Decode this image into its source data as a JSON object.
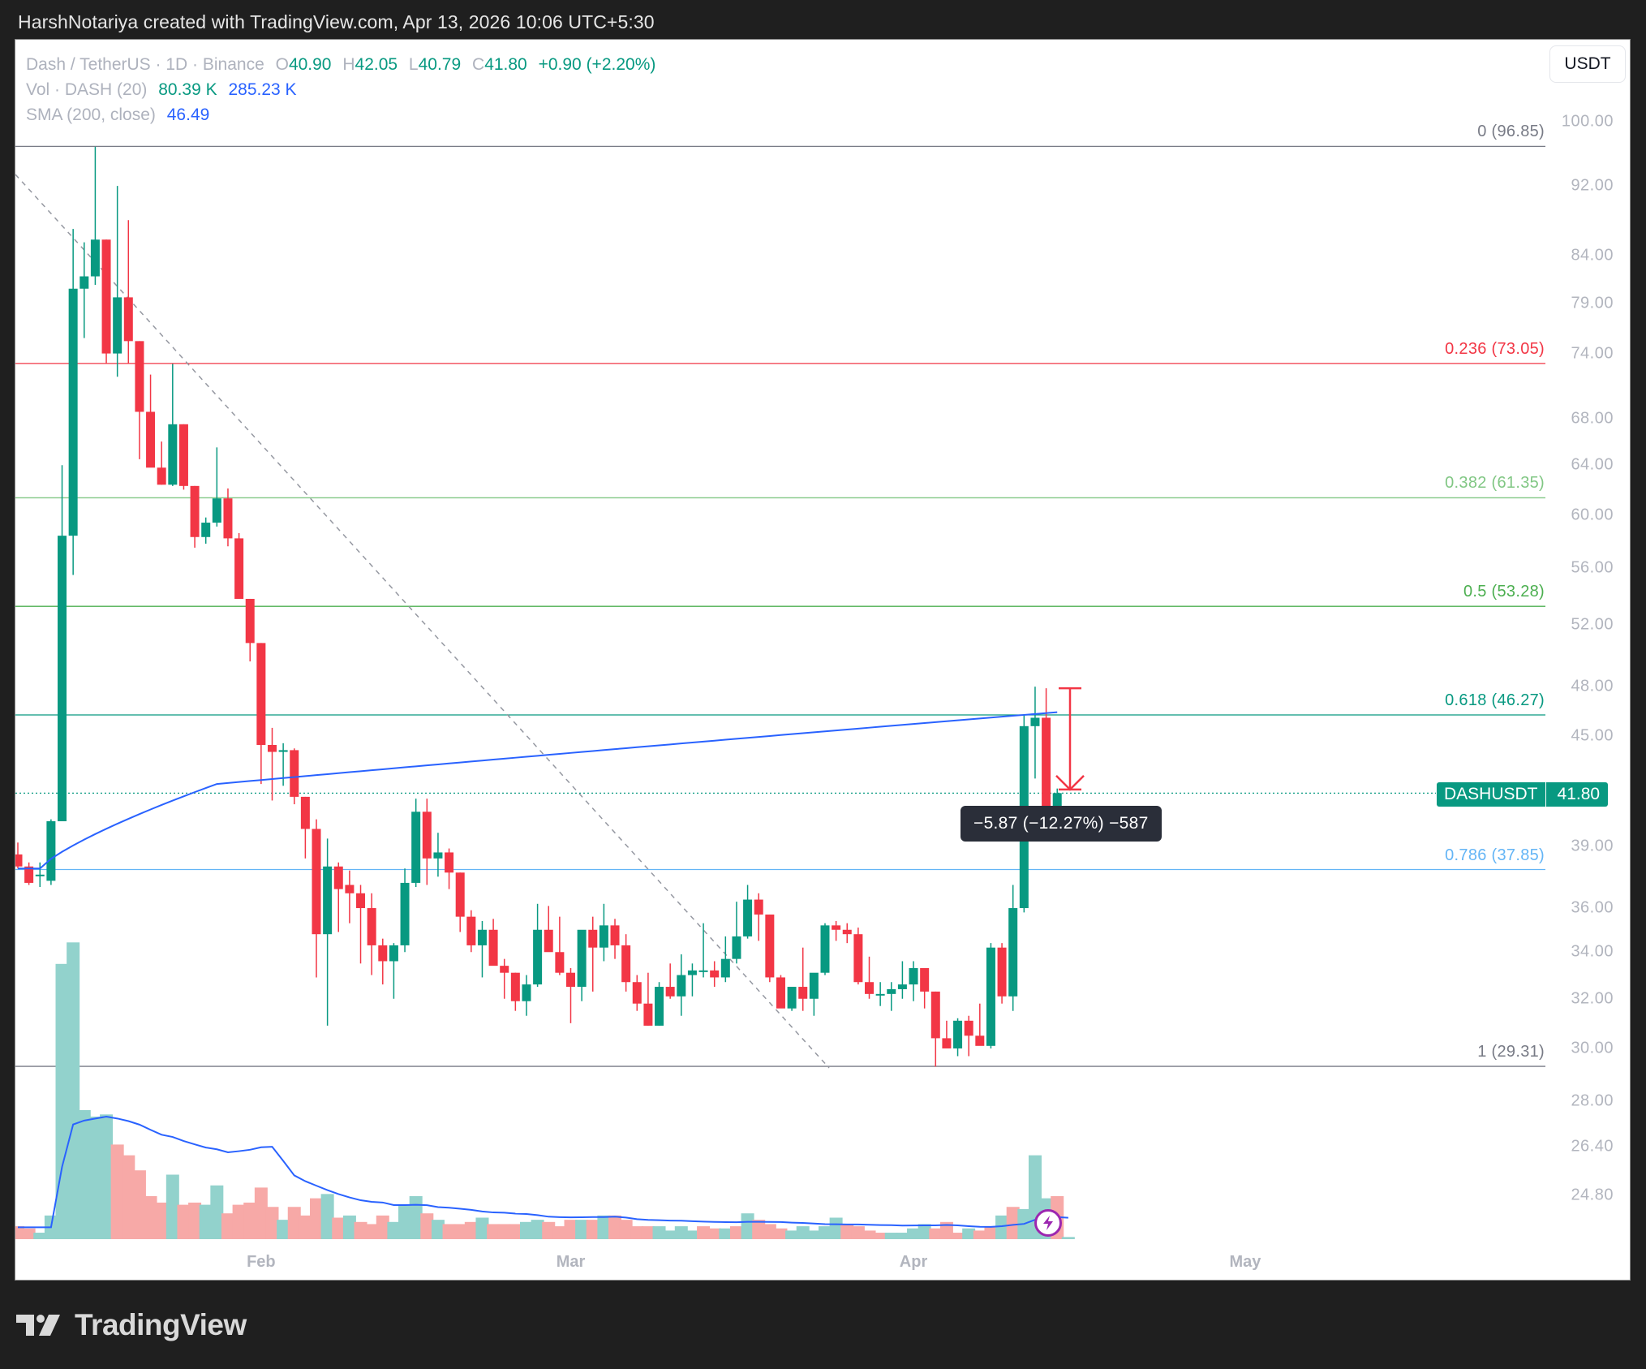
{
  "credit": "HarshNotariya created with TradingView.com, Apr 13, 2026 10:06 UTC+5:30",
  "legend": {
    "symbol": "Dash / TetherUS · 1D · Binance",
    "o_label": "O",
    "o": "40.90",
    "h_label": "H",
    "h": "42.05",
    "l_label": "L",
    "l": "40.79",
    "c_label": "C",
    "c": "41.80",
    "change": "+0.90 (+2.20%)",
    "vol_label": "Vol · DASH (20)",
    "vol": "80.39 K",
    "vol_ma": "285.23 K",
    "sma_label": "SMA (200, close)",
    "sma": "46.49"
  },
  "currency_button": "USDT",
  "price_tag": {
    "symbol": "DASHUSDT",
    "value": "41.80"
  },
  "measure_tooltip": "−5.87 (−12.27%) −587",
  "logo_text": "TradingView",
  "colors": {
    "up": "#089981",
    "down": "#f23645",
    "vol_up": "#92d2cc",
    "vol_down": "#f7a9a7",
    "sma": "#2962ff",
    "fib_0": "#787b86",
    "fib_236": "#f23645",
    "fib_382": "#81c784",
    "fib_5": "#4caf50",
    "fib_618": "#089981",
    "fib_786": "#64b5f6",
    "fib_1": "#787b86"
  },
  "chart_data": {
    "type": "candlestick",
    "title": "Dash / TetherUS · 1D · Binance",
    "xlabel": "",
    "ylabel": "USDT",
    "scale": "log",
    "ylim": [
      23.5,
      104
    ],
    "y_ticks": [
      "100.00",
      "92.00",
      "84.00",
      "79.00",
      "74.00",
      "68.00",
      "64.00",
      "60.00",
      "56.00",
      "52.00",
      "48.00",
      "45.00",
      "39.00",
      "36.00",
      "34.00",
      "32.00",
      "30.00",
      "28.00",
      "26.40",
      "24.80"
    ],
    "x_ticks": [
      {
        "label": "Feb",
        "day": 22
      },
      {
        "label": "Mar",
        "day": 50
      },
      {
        "label": "Apr",
        "day": 81
      },
      {
        "label": "May",
        "day": 111
      }
    ],
    "fib_levels": [
      {
        "label": "0 (96.85)",
        "level": 0,
        "price": 96.85,
        "color": "#787b86"
      },
      {
        "label": "0.236 (73.05)",
        "level": 0.236,
        "price": 73.05,
        "color": "#f23645"
      },
      {
        "label": "0.382 (61.35)",
        "level": 0.382,
        "price": 61.35,
        "color": "#81c784"
      },
      {
        "label": "0.5 (53.28)",
        "level": 0.5,
        "price": 53.28,
        "color": "#4caf50"
      },
      {
        "label": "0.618 (46.27)",
        "level": 0.618,
        "price": 46.27,
        "color": "#089981"
      },
      {
        "label": "0.786 (37.85)",
        "level": 0.786,
        "price": 37.85,
        "color": "#64b5f6"
      },
      {
        "label": "1 (29.31)",
        "level": 1,
        "price": 29.31,
        "color": "#787b86"
      }
    ],
    "last_price": 41.8,
    "sma200_last": 46.49,
    "candles": [
      {
        "o": 38.6,
        "h": 39.2,
        "l": 37.9,
        "c": 38.0
      },
      {
        "o": 38.0,
        "h": 38.2,
        "l": 37.1,
        "c": 37.2
      },
      {
        "o": 37.6,
        "h": 38.2,
        "l": 37.0,
        "c": 37.6
      },
      {
        "o": 37.3,
        "h": 40.4,
        "l": 37.1,
        "c": 40.3
      },
      {
        "o": 40.3,
        "h": 64.0,
        "l": 40.3,
        "c": 58.4
      },
      {
        "o": 58.4,
        "h": 87.0,
        "l": 55.5,
        "c": 80.5
      },
      {
        "o": 80.5,
        "h": 85.5,
        "l": 75.5,
        "c": 81.8
      },
      {
        "o": 81.8,
        "h": 96.8,
        "l": 80.9,
        "c": 85.8
      },
      {
        "o": 85.8,
        "h": 85.8,
        "l": 73.0,
        "c": 74.0
      },
      {
        "o": 74.0,
        "h": 92.0,
        "l": 71.8,
        "c": 79.6
      },
      {
        "o": 79.6,
        "h": 88.0,
        "l": 73.0,
        "c": 75.2
      },
      {
        "o": 75.2,
        "h": 75.2,
        "l": 64.5,
        "c": 68.6
      },
      {
        "o": 68.6,
        "h": 72.0,
        "l": 66.0,
        "c": 63.8
      },
      {
        "o": 63.8,
        "h": 66.0,
        "l": 62.4,
        "c": 62.4
      },
      {
        "o": 62.4,
        "h": 73.0,
        "l": 62.3,
        "c": 67.5
      },
      {
        "o": 67.5,
        "h": 67.5,
        "l": 62.0,
        "c": 62.3
      },
      {
        "o": 62.3,
        "h": 62.3,
        "l": 57.5,
        "c": 58.3
      },
      {
        "o": 58.3,
        "h": 59.8,
        "l": 57.8,
        "c": 59.4
      },
      {
        "o": 59.4,
        "h": 65.5,
        "l": 59.1,
        "c": 61.3
      },
      {
        "o": 61.3,
        "h": 62.1,
        "l": 57.6,
        "c": 58.2
      },
      {
        "o": 58.2,
        "h": 58.6,
        "l": 53.9,
        "c": 53.8
      },
      {
        "o": 53.8,
        "h": 53.8,
        "l": 49.6,
        "c": 50.8
      },
      {
        "o": 50.8,
        "h": 50.8,
        "l": 42.3,
        "c": 44.5
      },
      {
        "o": 44.5,
        "h": 45.5,
        "l": 41.4,
        "c": 44.1
      },
      {
        "o": 44.1,
        "h": 44.6,
        "l": 42.2,
        "c": 44.2
      },
      {
        "o": 44.2,
        "h": 44.3,
        "l": 41.2,
        "c": 41.6
      },
      {
        "o": 41.6,
        "h": 41.6,
        "l": 38.4,
        "c": 39.9
      },
      {
        "o": 39.9,
        "h": 40.4,
        "l": 32.9,
        "c": 34.8
      },
      {
        "o": 34.8,
        "h": 39.4,
        "l": 30.9,
        "c": 38.0
      },
      {
        "o": 38.0,
        "h": 38.2,
        "l": 34.9,
        "c": 36.9
      },
      {
        "o": 37.1,
        "h": 37.8,
        "l": 35.3,
        "c": 36.7
      },
      {
        "o": 36.7,
        "h": 37.1,
        "l": 33.5,
        "c": 36.0
      },
      {
        "o": 36.0,
        "h": 36.7,
        "l": 33.0,
        "c": 34.3
      },
      {
        "o": 34.3,
        "h": 34.6,
        "l": 32.6,
        "c": 33.6
      },
      {
        "o": 33.6,
        "h": 34.4,
        "l": 32.0,
        "c": 34.3
      },
      {
        "o": 34.3,
        "h": 37.9,
        "l": 34.0,
        "c": 37.2
      },
      {
        "o": 37.2,
        "h": 41.5,
        "l": 37.0,
        "c": 40.8
      },
      {
        "o": 40.8,
        "h": 41.5,
        "l": 37.1,
        "c": 38.4
      },
      {
        "o": 38.4,
        "h": 39.7,
        "l": 37.5,
        "c": 38.7
      },
      {
        "o": 38.7,
        "h": 38.9,
        "l": 36.9,
        "c": 37.7
      },
      {
        "o": 37.7,
        "h": 37.7,
        "l": 34.9,
        "c": 35.6
      },
      {
        "o": 35.6,
        "h": 35.9,
        "l": 34.0,
        "c": 34.3
      },
      {
        "o": 34.3,
        "h": 35.4,
        "l": 32.9,
        "c": 35.0
      },
      {
        "o": 35.0,
        "h": 35.5,
        "l": 33.6,
        "c": 33.4
      },
      {
        "o": 33.4,
        "h": 33.7,
        "l": 32.0,
        "c": 33.1
      },
      {
        "o": 33.1,
        "h": 33.1,
        "l": 31.5,
        "c": 31.9
      },
      {
        "o": 31.9,
        "h": 33.0,
        "l": 31.3,
        "c": 32.6
      },
      {
        "o": 32.6,
        "h": 36.2,
        "l": 32.5,
        "c": 35.0
      },
      {
        "o": 35.0,
        "h": 36.1,
        "l": 34.3,
        "c": 34.0
      },
      {
        "o": 34.0,
        "h": 35.6,
        "l": 33.0,
        "c": 33.1
      },
      {
        "o": 33.1,
        "h": 33.3,
        "l": 31.0,
        "c": 32.5
      },
      {
        "o": 32.5,
        "h": 34.0,
        "l": 31.9,
        "c": 35.0
      },
      {
        "o": 35.0,
        "h": 35.6,
        "l": 32.3,
        "c": 34.2
      },
      {
        "o": 34.2,
        "h": 36.2,
        "l": 33.6,
        "c": 35.2
      },
      {
        "o": 35.2,
        "h": 35.5,
        "l": 33.7,
        "c": 34.3
      },
      {
        "o": 34.3,
        "h": 34.8,
        "l": 32.3,
        "c": 32.7
      },
      {
        "o": 32.7,
        "h": 33.0,
        "l": 31.5,
        "c": 31.8
      },
      {
        "o": 31.8,
        "h": 33.1,
        "l": 30.9,
        "c": 30.9
      },
      {
        "o": 30.9,
        "h": 32.7,
        "l": 30.9,
        "c": 32.5
      },
      {
        "o": 32.5,
        "h": 33.5,
        "l": 32.0,
        "c": 32.1
      },
      {
        "o": 32.1,
        "h": 33.9,
        "l": 31.3,
        "c": 33.0
      },
      {
        "o": 33.0,
        "h": 33.5,
        "l": 32.1,
        "c": 33.2
      },
      {
        "o": 33.2,
        "h": 35.3,
        "l": 32.9,
        "c": 33.2
      },
      {
        "o": 33.2,
        "h": 33.6,
        "l": 32.5,
        "c": 32.9
      },
      {
        "o": 32.9,
        "h": 34.7,
        "l": 32.7,
        "c": 33.7
      },
      {
        "o": 33.7,
        "h": 36.3,
        "l": 33.5,
        "c": 34.7
      },
      {
        "o": 34.7,
        "h": 37.1,
        "l": 34.6,
        "c": 36.4
      },
      {
        "o": 36.4,
        "h": 36.7,
        "l": 34.5,
        "c": 35.7
      },
      {
        "o": 35.7,
        "h": 35.7,
        "l": 32.7,
        "c": 32.9
      },
      {
        "o": 32.9,
        "h": 33.0,
        "l": 31.7,
        "c": 31.6
      },
      {
        "o": 31.6,
        "h": 32.3,
        "l": 31.5,
        "c": 32.5
      },
      {
        "o": 32.5,
        "h": 34.2,
        "l": 31.5,
        "c": 32.0
      },
      {
        "o": 32.0,
        "h": 33.0,
        "l": 31.3,
        "c": 33.1
      },
      {
        "o": 33.1,
        "h": 35.3,
        "l": 33.0,
        "c": 35.2
      },
      {
        "o": 35.2,
        "h": 35.4,
        "l": 34.5,
        "c": 35.0
      },
      {
        "o": 35.0,
        "h": 35.3,
        "l": 34.4,
        "c": 34.8
      },
      {
        "o": 34.8,
        "h": 35.1,
        "l": 32.6,
        "c": 32.7
      },
      {
        "o": 32.7,
        "h": 33.8,
        "l": 32.0,
        "c": 32.2
      },
      {
        "o": 32.2,
        "h": 32.7,
        "l": 31.7,
        "c": 32.2
      },
      {
        "o": 32.2,
        "h": 32.7,
        "l": 31.5,
        "c": 32.4
      },
      {
        "o": 32.4,
        "h": 33.6,
        "l": 32.0,
        "c": 32.6
      },
      {
        "o": 32.6,
        "h": 33.6,
        "l": 31.9,
        "c": 33.3
      },
      {
        "o": 33.3,
        "h": 33.0,
        "l": 31.6,
        "c": 32.3
      },
      {
        "o": 32.3,
        "h": 32.3,
        "l": 29.3,
        "c": 30.4
      },
      {
        "o": 30.4,
        "h": 31.1,
        "l": 30.3,
        "c": 30.0
      },
      {
        "o": 30.0,
        "h": 31.2,
        "l": 29.7,
        "c": 31.1
      },
      {
        "o": 31.1,
        "h": 31.3,
        "l": 29.7,
        "c": 30.5
      },
      {
        "o": 30.5,
        "h": 31.8,
        "l": 30.2,
        "c": 30.1
      },
      {
        "o": 30.1,
        "h": 34.4,
        "l": 30.0,
        "c": 34.2
      },
      {
        "o": 34.2,
        "h": 34.4,
        "l": 31.8,
        "c": 32.1
      },
      {
        "o": 32.1,
        "h": 37.1,
        "l": 31.5,
        "c": 36.0
      },
      {
        "o": 36.0,
        "h": 46.3,
        "l": 35.8,
        "c": 45.6
      },
      {
        "o": 45.6,
        "h": 48.0,
        "l": 42.6,
        "c": 46.1
      },
      {
        "o": 46.1,
        "h": 47.9,
        "l": 40.7,
        "c": 40.9
      },
      {
        "o": 40.9,
        "h": 42.05,
        "l": 40.79,
        "c": 41.8
      }
    ],
    "volume": [
      {
        "v": 6,
        "up": false
      },
      {
        "v": 5,
        "up": false
      },
      {
        "v": 3,
        "up": true
      },
      {
        "v": 11,
        "up": true
      },
      {
        "v": 128,
        "up": true
      },
      {
        "v": 138,
        "up": true
      },
      {
        "v": 60,
        "up": true
      },
      {
        "v": 57,
        "up": true
      },
      {
        "v": 58,
        "up": true
      },
      {
        "v": 44,
        "up": false
      },
      {
        "v": 39,
        "up": false
      },
      {
        "v": 32,
        "up": false
      },
      {
        "v": 20,
        "up": false
      },
      {
        "v": 17,
        "up": false
      },
      {
        "v": 30,
        "up": true
      },
      {
        "v": 16,
        "up": false
      },
      {
        "v": 17,
        "up": false
      },
      {
        "v": 16,
        "up": true
      },
      {
        "v": 25,
        "up": true
      },
      {
        "v": 12,
        "up": false
      },
      {
        "v": 16,
        "up": false
      },
      {
        "v": 17,
        "up": false
      },
      {
        "v": 24,
        "up": false
      },
      {
        "v": 15,
        "up": false
      },
      {
        "v": 9,
        "up": true
      },
      {
        "v": 15,
        "up": false
      },
      {
        "v": 11,
        "up": false
      },
      {
        "v": 19,
        "up": false
      },
      {
        "v": 21,
        "up": true
      },
      {
        "v": 10,
        "up": false
      },
      {
        "v": 11,
        "up": true
      },
      {
        "v": 8,
        "up": false
      },
      {
        "v": 7,
        "up": false
      },
      {
        "v": 11,
        "up": false
      },
      {
        "v": 8,
        "up": true
      },
      {
        "v": 16,
        "up": true
      },
      {
        "v": 20,
        "up": true
      },
      {
        "v": 12,
        "up": false
      },
      {
        "v": 9,
        "up": true
      },
      {
        "v": 7,
        "up": false
      },
      {
        "v": 7,
        "up": false
      },
      {
        "v": 8,
        "up": false
      },
      {
        "v": 10,
        "up": true
      },
      {
        "v": 7,
        "up": false
      },
      {
        "v": 7,
        "up": false
      },
      {
        "v": 7,
        "up": false
      },
      {
        "v": 8,
        "up": true
      },
      {
        "v": 9,
        "up": true
      },
      {
        "v": 8,
        "up": false
      },
      {
        "v": 6,
        "up": false
      },
      {
        "v": 9,
        "up": false
      },
      {
        "v": 9,
        "up": true
      },
      {
        "v": 9,
        "up": false
      },
      {
        "v": 11,
        "up": true
      },
      {
        "v": 11,
        "up": false
      },
      {
        "v": 9,
        "up": false
      },
      {
        "v": 6,
        "up": false
      },
      {
        "v": 6,
        "up": false
      },
      {
        "v": 6,
        "up": true
      },
      {
        "v": 4,
        "up": true
      },
      {
        "v": 6,
        "up": true
      },
      {
        "v": 4,
        "up": true
      },
      {
        "v": 6,
        "up": false
      },
      {
        "v": 5,
        "up": false
      },
      {
        "v": 5,
        "up": true
      },
      {
        "v": 6,
        "up": false
      },
      {
        "v": 12,
        "up": true
      },
      {
        "v": 9,
        "up": false
      },
      {
        "v": 7,
        "up": false
      },
      {
        "v": 5,
        "up": false
      },
      {
        "v": 4,
        "up": true
      },
      {
        "v": 6,
        "up": true
      },
      {
        "v": 4,
        "up": true
      },
      {
        "v": 6,
        "up": true
      },
      {
        "v": 10,
        "up": true
      },
      {
        "v": 7,
        "up": false
      },
      {
        "v": 6,
        "up": false
      },
      {
        "v": 4,
        "up": false
      },
      {
        "v": 3,
        "up": false
      },
      {
        "v": 3,
        "up": true
      },
      {
        "v": 3,
        "up": true
      },
      {
        "v": 5,
        "up": true
      },
      {
        "v": 7,
        "up": true
      },
      {
        "v": 5,
        "up": false
      },
      {
        "v": 8,
        "up": false
      },
      {
        "v": 3,
        "up": false
      },
      {
        "v": 5,
        "up": true
      },
      {
        "v": 4,
        "up": false
      },
      {
        "v": 6,
        "up": false
      },
      {
        "v": 11,
        "up": true
      },
      {
        "v": 15,
        "up": false
      },
      {
        "v": 14,
        "up": true
      },
      {
        "v": 39,
        "up": true
      },
      {
        "v": 19,
        "up": true
      },
      {
        "v": 20,
        "up": false
      },
      {
        "v": 1,
        "up": true
      }
    ]
  }
}
